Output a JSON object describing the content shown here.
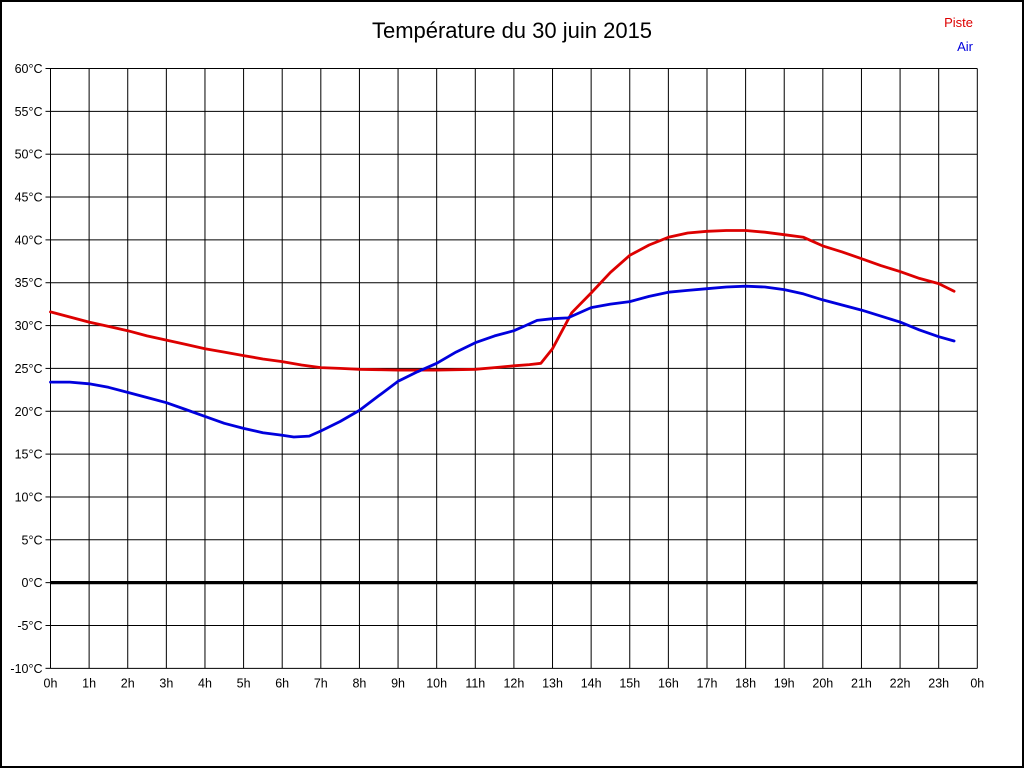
{
  "page": {
    "title": "Température du 30 juin 2015"
  },
  "legend": {
    "items": [
      {
        "label": "Piste",
        "color": "#dd0000"
      },
      {
        "label": "Air",
        "color": "#0000dd"
      }
    ]
  },
  "chart_data": {
    "type": "line",
    "title": "Température du 30 juin 2015",
    "xlabel": "",
    "ylabel": "",
    "x_unit": "h",
    "x_tick_labels": [
      "0h",
      "1h",
      "2h",
      "3h",
      "4h",
      "5h",
      "6h",
      "7h",
      "8h",
      "9h",
      "10h",
      "11h",
      "12h",
      "13h",
      "14h",
      "15h",
      "16h",
      "17h",
      "18h",
      "19h",
      "20h",
      "21h",
      "22h",
      "23h",
      "0h"
    ],
    "x_range_hours": [
      0,
      24
    ],
    "y_ticks": [
      60,
      55,
      50,
      45,
      40,
      35,
      30,
      25,
      20,
      15,
      10,
      5,
      0,
      -5,
      -10
    ],
    "y_tick_suffix": "°C",
    "ylim": [
      -10,
      60
    ],
    "grid": true,
    "grid_color": "#000000",
    "zero_line_bold": true,
    "legend_position": "top-right",
    "series": [
      {
        "name": "Piste",
        "color": "#dd0000",
        "points": [
          [
            0,
            31.6
          ],
          [
            0.5,
            31.0
          ],
          [
            1,
            30.4
          ],
          [
            1.5,
            29.9
          ],
          [
            2,
            29.4
          ],
          [
            2.5,
            28.8
          ],
          [
            3,
            28.3
          ],
          [
            3.5,
            27.8
          ],
          [
            4,
            27.3
          ],
          [
            4.5,
            26.9
          ],
          [
            5,
            26.5
          ],
          [
            5.5,
            26.1
          ],
          [
            6,
            25.8
          ],
          [
            6.5,
            25.4
          ],
          [
            7,
            25.1
          ],
          [
            7.5,
            25.0
          ],
          [
            8,
            24.9
          ],
          [
            8.5,
            24.85
          ],
          [
            9,
            24.8
          ],
          [
            9.5,
            24.8
          ],
          [
            10,
            24.8
          ],
          [
            10.5,
            24.85
          ],
          [
            11,
            24.9
          ],
          [
            11.5,
            25.1
          ],
          [
            12,
            25.3
          ],
          [
            12.4,
            25.45
          ],
          [
            12.7,
            25.6
          ],
          [
            13,
            27.3
          ],
          [
            13.5,
            31.5
          ],
          [
            14,
            33.8
          ],
          [
            14.5,
            36.2
          ],
          [
            15,
            38.2
          ],
          [
            15.5,
            39.4
          ],
          [
            16,
            40.3
          ],
          [
            16.5,
            40.8
          ],
          [
            17,
            41.0
          ],
          [
            17.5,
            41.1
          ],
          [
            18,
            41.1
          ],
          [
            18.5,
            40.9
          ],
          [
            19,
            40.6
          ],
          [
            19.5,
            40.3
          ],
          [
            20,
            39.3
          ],
          [
            20.5,
            38.6
          ],
          [
            21,
            37.8
          ],
          [
            21.5,
            37.0
          ],
          [
            22,
            36.3
          ],
          [
            22.5,
            35.5
          ],
          [
            23,
            34.9
          ],
          [
            23.4,
            34.0
          ]
        ]
      },
      {
        "name": "Air",
        "color": "#0000dd",
        "points": [
          [
            0,
            23.4
          ],
          [
            0.5,
            23.4
          ],
          [
            1,
            23.2
          ],
          [
            1.5,
            22.8
          ],
          [
            2,
            22.2
          ],
          [
            2.5,
            21.6
          ],
          [
            3,
            21.0
          ],
          [
            3.5,
            20.2
          ],
          [
            4,
            19.4
          ],
          [
            4.5,
            18.6
          ],
          [
            5,
            18.0
          ],
          [
            5.5,
            17.5
          ],
          [
            6,
            17.2
          ],
          [
            6.3,
            17.0
          ],
          [
            6.7,
            17.1
          ],
          [
            7,
            17.7
          ],
          [
            7.5,
            18.8
          ],
          [
            8,
            20.1
          ],
          [
            8.5,
            21.8
          ],
          [
            9,
            23.5
          ],
          [
            9.5,
            24.6
          ],
          [
            10,
            25.6
          ],
          [
            10.5,
            26.9
          ],
          [
            11,
            28.0
          ],
          [
            11.5,
            28.8
          ],
          [
            12,
            29.4
          ],
          [
            12.3,
            30.0
          ],
          [
            12.6,
            30.6
          ],
          [
            13,
            30.8
          ],
          [
            13.4,
            30.9
          ],
          [
            14,
            32.1
          ],
          [
            14.5,
            32.5
          ],
          [
            15,
            32.8
          ],
          [
            15.5,
            33.4
          ],
          [
            16,
            33.9
          ],
          [
            16.5,
            34.1
          ],
          [
            17,
            34.3
          ],
          [
            17.5,
            34.5
          ],
          [
            18,
            34.6
          ],
          [
            18.5,
            34.5
          ],
          [
            19,
            34.2
          ],
          [
            19.5,
            33.7
          ],
          [
            20,
            33.0
          ],
          [
            20.5,
            32.4
          ],
          [
            21,
            31.8
          ],
          [
            21.5,
            31.1
          ],
          [
            22,
            30.4
          ],
          [
            22.5,
            29.5
          ],
          [
            23,
            28.7
          ],
          [
            23.4,
            28.2
          ]
        ]
      }
    ]
  }
}
